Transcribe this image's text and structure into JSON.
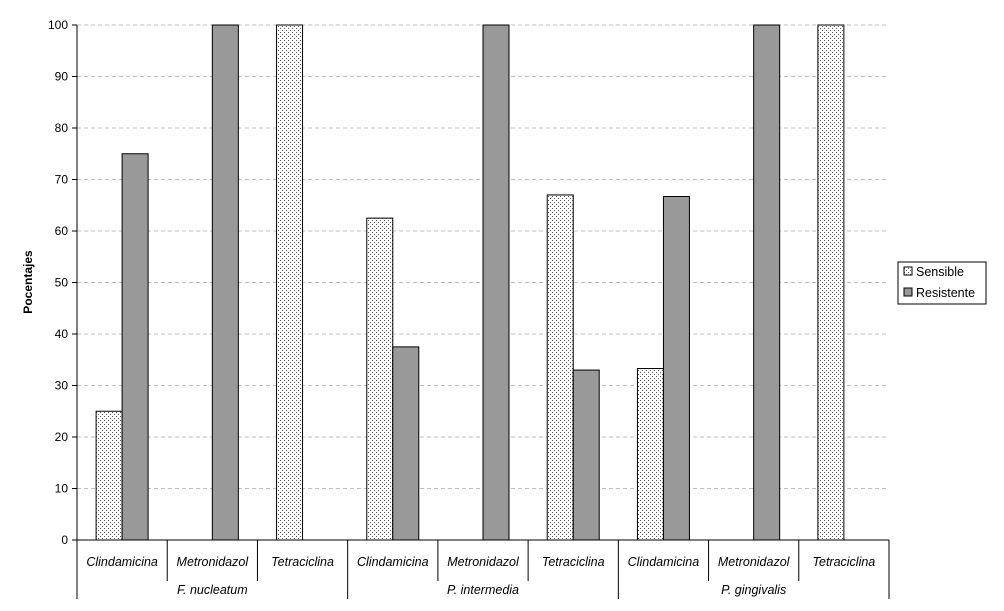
{
  "chart_data": {
    "type": "bar",
    "ylabel": "Pocentajes",
    "xlabel": "",
    "title": "",
    "ylim": [
      0,
      100
    ],
    "yticks": [
      0,
      10,
      20,
      30,
      40,
      50,
      60,
      70,
      80,
      90,
      100
    ],
    "grid": "horizontal dashed",
    "legend_position": "right",
    "groups": [
      "F. nucleatum",
      "P. intermedia",
      "P. gingivalis"
    ],
    "categories": [
      "Clindamicina",
      "Metronidazol",
      "Tetraciclina",
      "Clindamicina",
      "Metronidazol",
      "Tetraciclina",
      "Clindamicina",
      "Metronidazol",
      "Tetraciclina"
    ],
    "series": [
      {
        "name": "Sensible",
        "pattern": "dotted",
        "color": "#ffffff",
        "values": [
          25,
          0,
          100,
          62.5,
          0,
          67,
          33.3,
          0,
          100
        ]
      },
      {
        "name": "Resistente",
        "pattern": "solid",
        "color": "#999999",
        "values": [
          75,
          100,
          0,
          37.5,
          100,
          33,
          66.7,
          100,
          0
        ]
      }
    ]
  }
}
